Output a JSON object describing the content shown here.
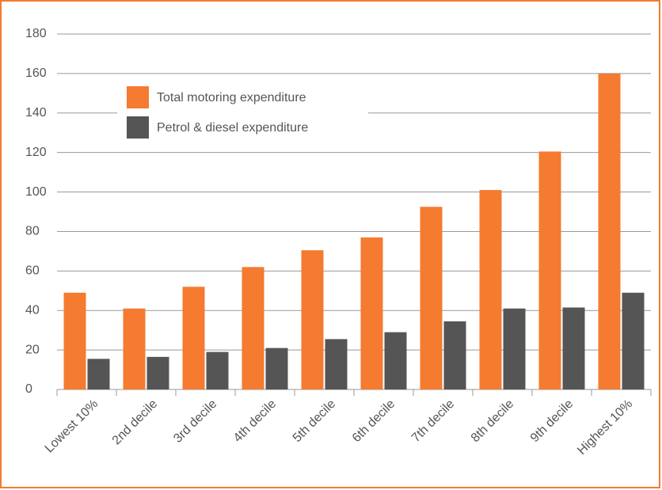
{
  "chart_data": {
    "type": "bar",
    "categories": [
      "Lowest 10%",
      "2nd decile",
      "3rd decile",
      "4th decile",
      "5th decile",
      "6th decile",
      "7th decile",
      "8th decile",
      "9th decile",
      "Highest 10%"
    ],
    "series": [
      {
        "name": "Total motoring expenditure",
        "color": "#f47b30",
        "values": [
          49,
          41,
          52,
          62,
          70.5,
          77,
          92.5,
          101,
          120.5,
          160
        ]
      },
      {
        "name": "Petrol & diesel expenditure",
        "color": "#555555",
        "values": [
          15.5,
          16.5,
          19,
          21,
          25.5,
          29,
          34.5,
          41,
          41.5,
          49
        ]
      }
    ],
    "ylim": [
      0,
      180
    ],
    "yticks": [
      0,
      20,
      40,
      60,
      80,
      100,
      120,
      140,
      160,
      180
    ],
    "grid": true,
    "legend": "top-left"
  }
}
